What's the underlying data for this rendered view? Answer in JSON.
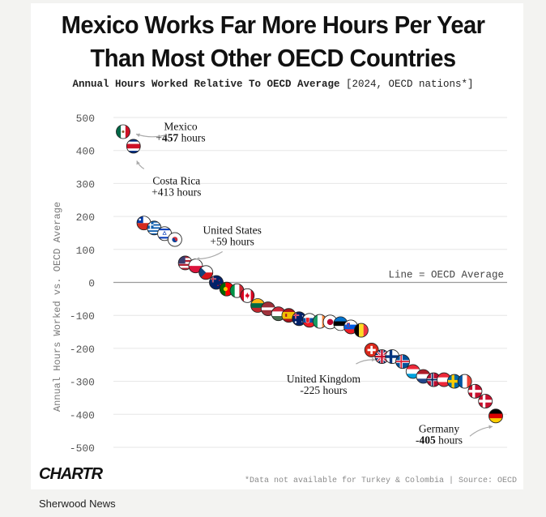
{
  "title_line1": "Mexico Works Far More Hours Per Year",
  "title_line2": "Than Most Other OECD Countries",
  "subtitle_bold": "Annual Hours Worked Relative To OECD Average",
  "subtitle_rest": "[2024, OECD nations*]",
  "logo": "CHARTR",
  "footnote": "*Data not available for Turkey & Colombia | Source: OECD",
  "brand": "Sherwood News",
  "colors": {
    "grid": "#e6e6e6",
    "zero_line": "#9a9a9a",
    "axis_text": "#555555",
    "annotation": "#111111",
    "arrow": "#aaaaaa"
  },
  "chart_data": {
    "type": "scatter",
    "title": "Annual Hours Worked Relative To OECD Average",
    "ylabel": "Annual Hours Worked vs. OECD Average",
    "xlabel": "",
    "ylim": [
      -500,
      500
    ],
    "yticks": [
      500,
      400,
      300,
      200,
      100,
      0,
      -100,
      -200,
      -300,
      -400,
      -500
    ],
    "reference_line": {
      "y": 0,
      "label": "Line = OECD Average"
    },
    "points": [
      {
        "country": "Mexico",
        "value": 457,
        "flag": "mexico"
      },
      {
        "country": "Costa Rica",
        "value": 413,
        "flag": "costa-rica"
      },
      {
        "country": "Chile",
        "value": 180,
        "flag": "chile"
      },
      {
        "country": "Greece",
        "value": 165,
        "flag": "greece"
      },
      {
        "country": "Israel",
        "value": 148,
        "flag": "israel"
      },
      {
        "country": "South Korea",
        "value": 130,
        "flag": "south-korea"
      },
      {
        "country": "United States",
        "value": 59,
        "flag": "usa"
      },
      {
        "country": "Poland",
        "value": 50,
        "flag": "poland"
      },
      {
        "country": "Czech Republic",
        "value": 30,
        "flag": "czechia"
      },
      {
        "country": "New Zealand",
        "value": 0,
        "flag": "new-zealand"
      },
      {
        "country": "Portugal",
        "value": -20,
        "flag": "portugal"
      },
      {
        "country": "Italy",
        "value": -25,
        "flag": "italy"
      },
      {
        "country": "Canada",
        "value": -40,
        "flag": "canada"
      },
      {
        "country": "Lithuania",
        "value": -70,
        "flag": "lithuania"
      },
      {
        "country": "Latvia",
        "value": -80,
        "flag": "latvia"
      },
      {
        "country": "Hungary",
        "value": -95,
        "flag": "hungary"
      },
      {
        "country": "Spain",
        "value": -100,
        "flag": "spain"
      },
      {
        "country": "Australia",
        "value": -110,
        "flag": "australia"
      },
      {
        "country": "Slovakia",
        "value": -115,
        "flag": "slovakia"
      },
      {
        "country": "Ireland",
        "value": -118,
        "flag": "ireland"
      },
      {
        "country": "Japan",
        "value": -120,
        "flag": "japan"
      },
      {
        "country": "Estonia",
        "value": -125,
        "flag": "estonia"
      },
      {
        "country": "Slovenia",
        "value": -135,
        "flag": "slovenia"
      },
      {
        "country": "Belgium",
        "value": -145,
        "flag": "belgium"
      },
      {
        "country": "Switzerland",
        "value": -205,
        "flag": "switzerland"
      },
      {
        "country": "United Kingdom",
        "value": -225,
        "flag": "uk"
      },
      {
        "country": "Finland",
        "value": -225,
        "flag": "finland"
      },
      {
        "country": "Iceland",
        "value": -240,
        "flag": "iceland"
      },
      {
        "country": "Luxembourg",
        "value": -270,
        "flag": "luxembourg"
      },
      {
        "country": "Netherlands",
        "value": -285,
        "flag": "netherlands"
      },
      {
        "country": "Norway",
        "value": -295,
        "flag": "norway"
      },
      {
        "country": "Austria",
        "value": -295,
        "flag": "austria"
      },
      {
        "country": "Sweden",
        "value": -300,
        "flag": "sweden"
      },
      {
        "country": "France",
        "value": -300,
        "flag": "france"
      },
      {
        "country": "Denmark",
        "value": -330,
        "flag": "denmark"
      },
      {
        "country": "Denmark II",
        "value": -360,
        "flag": "denmark"
      },
      {
        "country": "Germany",
        "value": -405,
        "flag": "germany"
      }
    ],
    "annotations": [
      {
        "country": "Mexico",
        "line1": "Mexico",
        "line2_prefix": "+",
        "line2_value": "457",
        "line2_suffix": " hours",
        "bold_value": true
      },
      {
        "country": "Costa Rica",
        "line1": "Costa Rica",
        "line2_prefix": "+",
        "line2_value": "413",
        "line2_suffix": " hours",
        "bold_value": false
      },
      {
        "country": "United States",
        "line1": "United States",
        "line2_prefix": "+",
        "line2_value": "59",
        "line2_suffix": " hours",
        "bold_value": false
      },
      {
        "country": "United Kingdom",
        "line1": "United Kingdom",
        "line2_prefix": "-",
        "line2_value": "225",
        "line2_suffix": " hours",
        "bold_value": false
      },
      {
        "country": "Germany",
        "line1": "Germany",
        "line2_prefix": "-",
        "line2_value": "405",
        "line2_suffix": " hours",
        "bold_value": true
      }
    ]
  }
}
